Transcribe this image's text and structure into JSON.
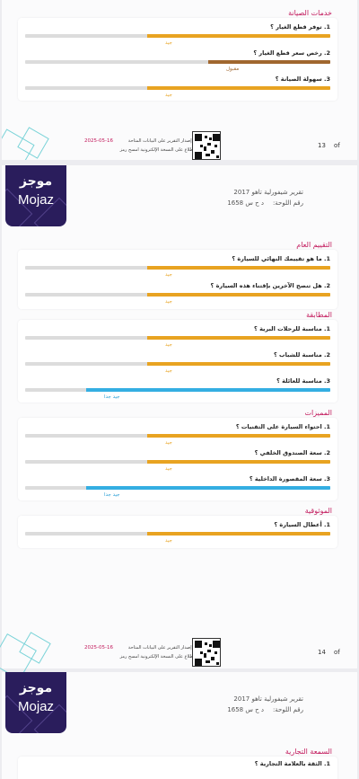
{
  "header": {
    "logo_ar": "موجز",
    "logo_en": "Mojaz",
    "report_title": "تقرير شيفورلية تاهو 2017",
    "plate_label": "رقم اللوحة:",
    "plate_value": "د ح س 1658"
  },
  "colors": {
    "good": "#e8a321",
    "acceptable": "#a0672f",
    "very_good": "#34aee2",
    "track": "#dcdcdc",
    "section_title": "#c2185b"
  },
  "sections_top": [
    {
      "title": "خدمات الصيانة",
      "questions": [
        {
          "label": "1. توفر قطع الغيار ؟",
          "rating": "جيد",
          "level": 0.6,
          "color": "#e8a321"
        },
        {
          "label": "2. رخص سعر قطع الغيار ؟",
          "rating": "مقبول",
          "level": 0.4,
          "color": "#a0672f"
        },
        {
          "label": "3. سهولة الصيانة ؟",
          "rating": "جيد",
          "level": 0.6,
          "color": "#e8a321"
        }
      ]
    }
  ],
  "footer1": {
    "date": "2025-05-16",
    "line1": "تم إصدار التقرير على البيانات المتاحة",
    "line2": "للاطلاع على النسخة الإلكترونية امسح رمز",
    "page": "13",
    "of": "of"
  },
  "sections_mid": [
    {
      "title": "التقييم العام",
      "questions": [
        {
          "label": "1. ما هو تقييمك النهائي للسيارة ؟",
          "rating": "جيد",
          "level": 0.6,
          "color": "#e8a321"
        },
        {
          "label": "2. هل تنصح الآخرين بإقتناء هذه السيارة ؟",
          "rating": "جيد",
          "level": 0.6,
          "color": "#e8a321"
        }
      ]
    },
    {
      "title": "المطابقة",
      "questions": [
        {
          "label": "1. مناسبة للرحلات البرية ؟",
          "rating": "جيد",
          "level": 0.6,
          "color": "#e8a321"
        },
        {
          "label": "2. مناسبة للشباب ؟",
          "rating": "جيد",
          "level": 0.6,
          "color": "#e8a321"
        },
        {
          "label": "3. مناسبة للعائلة ؟",
          "rating": "جيد جدا",
          "level": 0.8,
          "color": "#34aee2"
        }
      ]
    },
    {
      "title": "المميزات",
      "questions": [
        {
          "label": "1. احتواء السيارة على التقنيات ؟",
          "rating": "جيد",
          "level": 0.6,
          "color": "#e8a321"
        },
        {
          "label": "2. سعة الصندوق الخلفي ؟",
          "rating": "جيد",
          "level": 0.6,
          "color": "#e8a321"
        },
        {
          "label": "3. سعة المقصورة الداخلية ؟",
          "rating": "جيد جدا",
          "level": 0.8,
          "color": "#34aee2"
        }
      ]
    },
    {
      "title": "الموثوقية",
      "questions": [
        {
          "label": "1. أعطال السيارة ؟",
          "rating": "جيد",
          "level": 0.6,
          "color": "#e8a321"
        }
      ]
    }
  ],
  "footer2": {
    "date": "2025-05-16",
    "line1": "تم إصدار التقرير على البيانات المتاحة",
    "line2": "للاطلاع على النسخة الإلكترونية امسح رمز",
    "page": "14",
    "of": "of"
  },
  "header2": {
    "logo_ar": "موجز",
    "logo_en": "Mojaz",
    "report_title": "تقرير شيفورلية تاهو 2017",
    "plate_label": "رقم اللوحة:",
    "plate_value": "د ح س 1658"
  },
  "sections_bottom": [
    {
      "title": "السمعة التجارية",
      "first_question": "1. الثقة بالعلامة التجارية ؟"
    }
  ]
}
